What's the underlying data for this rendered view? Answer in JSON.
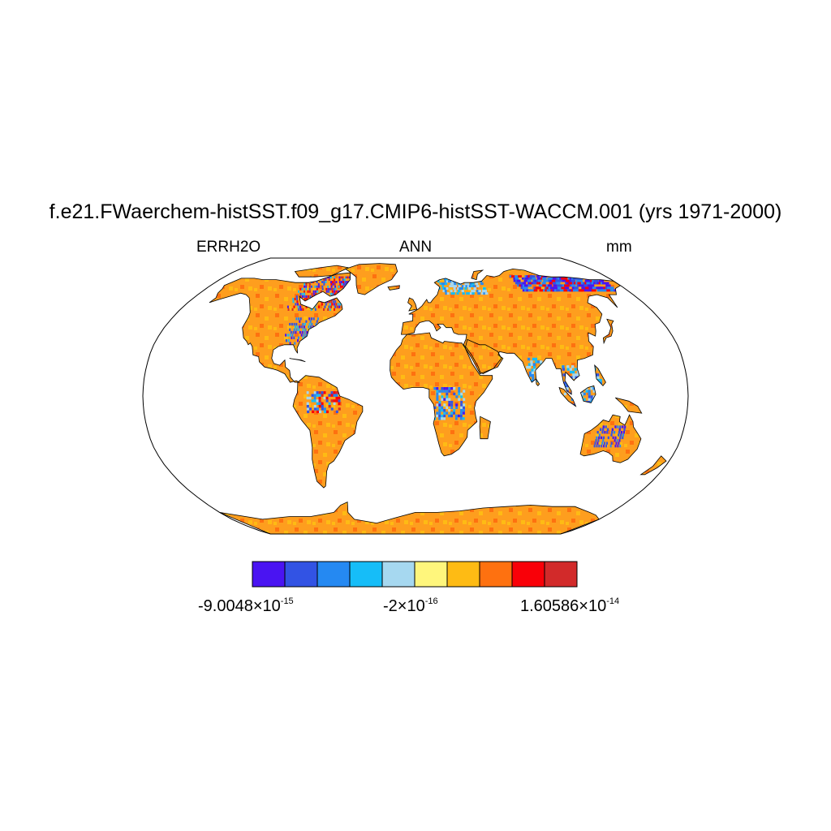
{
  "title": "f.e21.FWaerchem-histSST.f09_g17.CMIP6-histSST-WACCM.001 (yrs 1971-2000)",
  "subtitle": {
    "left": "ERRH2O",
    "center": "ANN",
    "right": "mm"
  },
  "map": {
    "projection": "robinson",
    "land_fill": "#fe9e1e",
    "ocean_fill": "#ffffff",
    "coastline_color": "#000000"
  },
  "colorbar": {
    "colors": [
      "#4a14f2",
      "#3253e4",
      "#2589f2",
      "#16bdf8",
      "#a6d8f0",
      "#fff67c",
      "#febb14",
      "#fe7110",
      "#f90008",
      "#d22a2a"
    ],
    "labels": [
      {
        "mantissa": "-9.0048",
        "times": "×",
        "base": "10",
        "exp": "-15"
      },
      {
        "mantissa": "-2",
        "times": "×",
        "base": "10",
        "exp": "-16"
      },
      {
        "mantissa": "1.60586",
        "times": "×",
        "base": "10",
        "exp": "-14"
      }
    ]
  }
}
